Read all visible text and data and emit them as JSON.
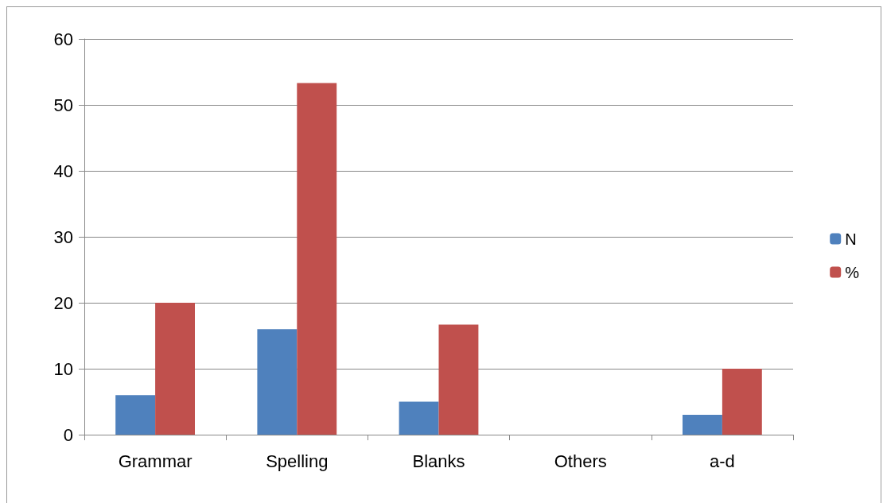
{
  "chart_data": {
    "type": "bar",
    "categories": [
      "Grammar",
      "Spelling",
      "Blanks",
      "Others",
      "a-d"
    ],
    "series": [
      {
        "name": "N",
        "color": "#4f81bd",
        "values": [
          6,
          16,
          5,
          0,
          3
        ]
      },
      {
        "name": "%",
        "color": "#c0504d",
        "values": [
          20,
          53.3,
          16.7,
          0,
          10
        ]
      }
    ],
    "ylim": [
      0,
      60
    ],
    "yticks": [
      0,
      10,
      20,
      30,
      40,
      50,
      60
    ],
    "grid": "y",
    "legend": "right"
  }
}
